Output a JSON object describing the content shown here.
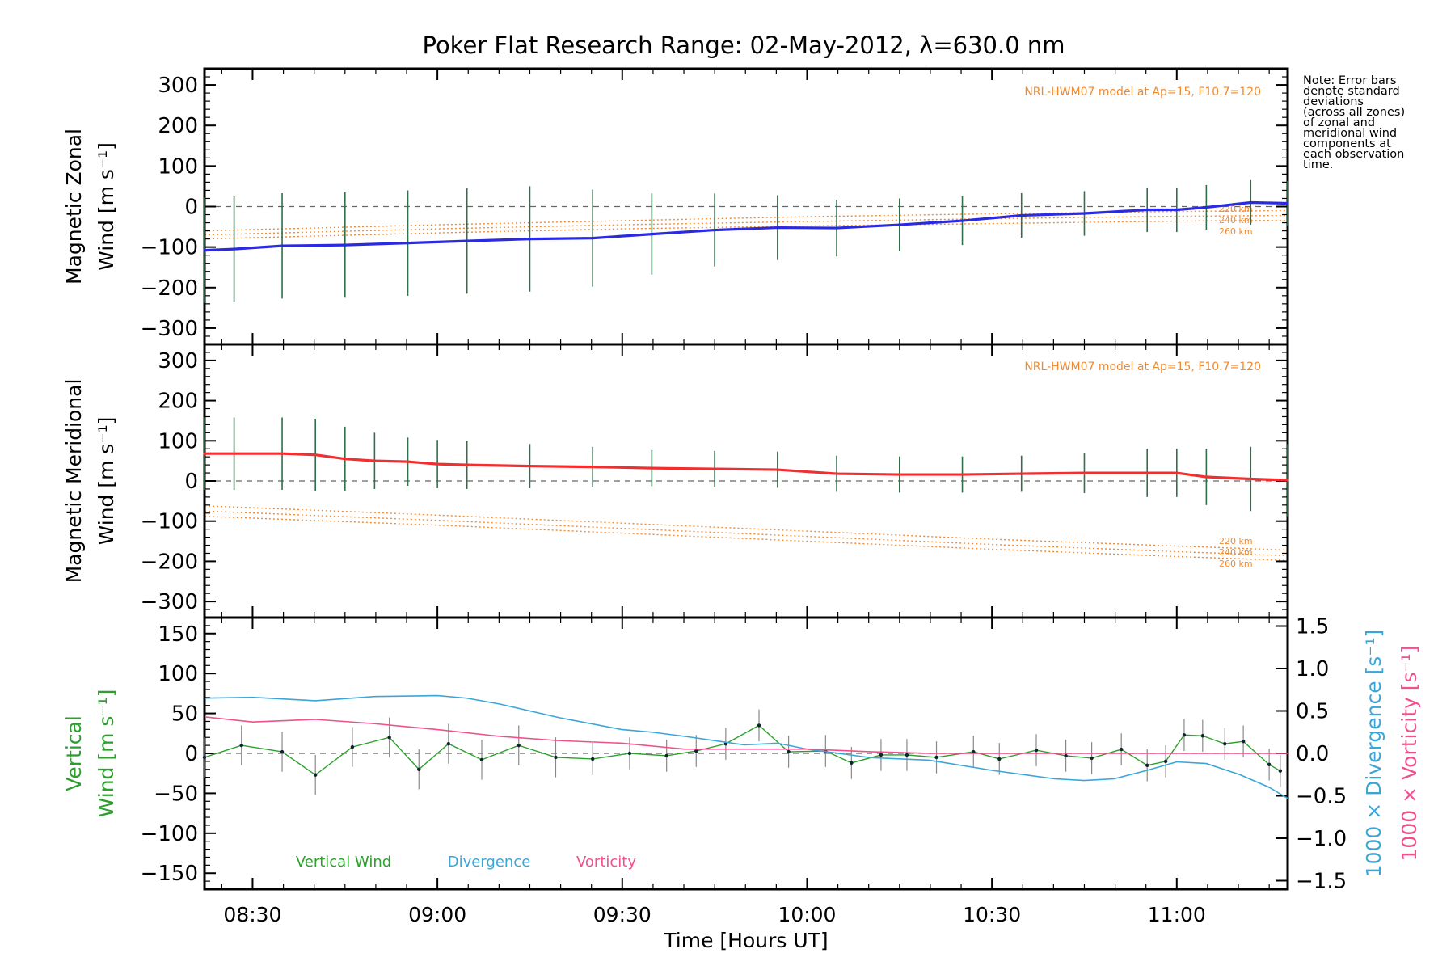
{
  "title": "Poker Flat Research Range: 02-May-2012, λ=630.0 nm",
  "note_lines": [
    "Note: Error bars",
    "denote standard",
    "deviations",
    "(across all zones)",
    "of zonal and",
    "meridional wind",
    "components at",
    "each observation",
    "time."
  ],
  "colors": {
    "zonal": "#2a2ae0",
    "meridional": "#f03030",
    "model": "#f08a30",
    "vertical": "#2ca02c",
    "divergence": "#3aa6d8",
    "vorticity": "#f0508c",
    "zone_markers": "#9aa0e8"
  },
  "chart_data": [
    {
      "type": "line",
      "name": "zonal-panel",
      "ylabel_lines": [
        "Magnetic Zonal",
        "Wind [m s⁻¹]"
      ],
      "xlim": [
        8.37,
        11.3
      ],
      "ylim": [
        -340,
        340
      ],
      "yticks": [
        -300,
        -200,
        -100,
        0,
        100,
        200,
        300
      ],
      "yticklabels": [
        "−300",
        "−200",
        "−100",
        "0",
        "100",
        "200",
        "300"
      ],
      "model_label": "NRL-HWM07 model at Ap=15, F10.7=120",
      "model_curves": [
        {
          "label": "220 km",
          "x": [
            8.37,
            9.0,
            9.5,
            10.0,
            10.5,
            11.0,
            11.3
          ],
          "y": [
            -60,
            -45,
            -35,
            -25,
            -18,
            -12,
            -10
          ]
        },
        {
          "label": "240 km",
          "x": [
            8.37,
            9.0,
            9.5,
            10.0,
            10.5,
            11.0,
            11.3
          ],
          "y": [
            -70,
            -55,
            -45,
            -37,
            -30,
            -24,
            -22
          ]
        },
        {
          "label": "260 km",
          "x": [
            8.37,
            9.0,
            9.5,
            10.0,
            10.5,
            11.0,
            11.3
          ],
          "y": [
            -80,
            -65,
            -55,
            -48,
            -42,
            -36,
            -34
          ]
        }
      ],
      "series": [
        {
          "name": "Magnetic Zonal Wind",
          "x": [
            8.37,
            8.45,
            8.58,
            8.75,
            8.92,
            9.08,
            9.25,
            9.42,
            9.58,
            9.75,
            9.92,
            10.08,
            10.25,
            10.42,
            10.58,
            10.75,
            10.92,
            11.0,
            11.08,
            11.2,
            11.3
          ],
          "y": [
            -108,
            -105,
            -97,
            -95,
            -90,
            -85,
            -80,
            -78,
            -68,
            -58,
            -52,
            -53,
            -45,
            -35,
            -22,
            -17,
            -8,
            -8,
            -2,
            10,
            8
          ],
          "err": [
            130,
            130,
            130,
            130,
            130,
            130,
            130,
            120,
            100,
            90,
            80,
            70,
            65,
            60,
            55,
            55,
            55,
            55,
            55,
            55,
            55
          ]
        }
      ]
    },
    {
      "type": "line",
      "name": "meridional-panel",
      "ylabel_lines": [
        "Magnetic Meridional",
        "Wind [m s⁻¹]"
      ],
      "xlim": [
        8.37,
        11.3
      ],
      "ylim": [
        -340,
        340
      ],
      "yticks": [
        -300,
        -200,
        -100,
        0,
        100,
        200,
        300
      ],
      "yticklabels": [
        "−300",
        "−200",
        "−100",
        "0",
        "100",
        "200",
        "300"
      ],
      "model_label": "NRL-HWM07 model at Ap=15, F10.7=120",
      "model_curves": [
        {
          "label": "220 km",
          "x": [
            8.37,
            9.0,
            9.5,
            10.0,
            10.5,
            11.0,
            11.3
          ],
          "y": [
            -62,
            -85,
            -105,
            -125,
            -145,
            -162,
            -172
          ]
        },
        {
          "label": "240 km",
          "x": [
            8.37,
            9.0,
            9.5,
            10.0,
            10.5,
            11.0,
            11.3
          ],
          "y": [
            -75,
            -98,
            -118,
            -138,
            -158,
            -176,
            -186
          ]
        },
        {
          "label": "260 km",
          "x": [
            8.37,
            9.0,
            9.5,
            10.0,
            10.5,
            11.0,
            11.3
          ],
          "y": [
            -88,
            -110,
            -130,
            -150,
            -170,
            -188,
            -198
          ]
        }
      ],
      "series": [
        {
          "name": "Magnetic Meridional Wind",
          "x": [
            8.37,
            8.45,
            8.58,
            8.67,
            8.75,
            8.83,
            8.92,
            9.0,
            9.08,
            9.25,
            9.42,
            9.58,
            9.75,
            9.92,
            10.08,
            10.25,
            10.42,
            10.58,
            10.75,
            10.92,
            11.0,
            11.08,
            11.2,
            11.3
          ],
          "y": [
            68,
            68,
            68,
            65,
            55,
            50,
            48,
            42,
            40,
            37,
            35,
            32,
            30,
            28,
            18,
            16,
            16,
            18,
            20,
            20,
            20,
            10,
            5,
            2
          ],
          "err": [
            90,
            90,
            90,
            90,
            80,
            70,
            60,
            60,
            60,
            55,
            50,
            45,
            45,
            45,
            45,
            45,
            45,
            45,
            50,
            60,
            60,
            70,
            80,
            90
          ]
        }
      ]
    },
    {
      "type": "line",
      "name": "vertical-panel",
      "ylabel_lines": [
        "Vertical",
        "Wind [m s⁻¹]"
      ],
      "xlabel": "Time [Hours UT]",
      "xlim": [
        8.37,
        11.3
      ],
      "xticks": [
        8.5,
        9.0,
        9.5,
        10.0,
        10.5,
        11.0
      ],
      "xticklabels": [
        "08:30",
        "09:00",
        "09:30",
        "10:00",
        "10:30",
        "11:00"
      ],
      "ylim": [
        -170,
        170
      ],
      "yticks": [
        -150,
        -100,
        -50,
        0,
        50,
        100,
        150
      ],
      "yticklabels": [
        "−150",
        "−100",
        "−50",
        "0",
        "50",
        "100",
        "150"
      ],
      "y2lim": [
        -1.6,
        1.6
      ],
      "y2ticks": [
        -1.5,
        -1.0,
        -0.5,
        0.0,
        0.5,
        1.0,
        1.5
      ],
      "y2ticklabels": [
        "−1.5",
        "−1.0",
        "−0.5",
        "0.0",
        "0.5",
        "1.0",
        "1.5"
      ],
      "y2label_div": "1000 × Divergence [s⁻¹]",
      "y2label_vor": "1000 × Vorticity [s⁻¹]",
      "legend": [
        "Vertical Wind",
        "Divergence",
        "Vorticity"
      ],
      "series": [
        {
          "name": "Vertical Wind",
          "x": [
            8.37,
            8.47,
            8.58,
            8.67,
            8.77,
            8.87,
            8.95,
            9.03,
            9.12,
            9.22,
            9.32,
            9.42,
            9.52,
            9.62,
            9.7,
            9.78,
            9.87,
            9.95,
            10.05,
            10.12,
            10.2,
            10.27,
            10.35,
            10.45,
            10.52,
            10.62,
            10.7,
            10.77,
            10.85,
            10.92,
            10.97,
            11.02,
            11.07,
            11.13,
            11.18,
            11.25,
            11.28
          ],
          "y": [
            -5,
            10,
            2,
            -27,
            8,
            20,
            -20,
            12,
            -8,
            10,
            -5,
            -7,
            0,
            -3,
            3,
            12,
            35,
            2,
            3,
            -12,
            -2,
            -2,
            -5,
            2,
            -7,
            4,
            -3,
            -6,
            5,
            -15,
            -10,
            23,
            22,
            12,
            15,
            -14,
            -22
          ],
          "err": [
            25,
            25,
            25,
            25,
            25,
            25,
            25,
            25,
            25,
            25,
            25,
            20,
            20,
            20,
            20,
            20,
            20,
            20,
            20,
            20,
            20,
            20,
            20,
            20,
            20,
            20,
            20,
            20,
            20,
            20,
            20,
            20,
            20,
            20,
            20,
            20,
            20
          ]
        },
        {
          "name": "Divergence",
          "axis": "y2",
          "x": [
            8.37,
            8.5,
            8.67,
            8.83,
            9.0,
            9.08,
            9.17,
            9.33,
            9.5,
            9.58,
            9.67,
            9.83,
            9.92,
            10.0,
            10.17,
            10.33,
            10.5,
            10.67,
            10.75,
            10.83,
            10.92,
            11.0,
            11.08,
            11.17,
            11.25,
            11.3
          ],
          "y": [
            0.65,
            0.66,
            0.62,
            0.67,
            0.68,
            0.65,
            0.58,
            0.42,
            0.28,
            0.25,
            0.2,
            0.1,
            0.12,
            0.05,
            -0.05,
            -0.08,
            -0.2,
            -0.3,
            -0.32,
            -0.3,
            -0.2,
            -0.1,
            -0.12,
            -0.25,
            -0.4,
            -0.53
          ]
        },
        {
          "name": "Vorticity",
          "axis": "y2",
          "x": [
            8.37,
            8.5,
            8.67,
            8.83,
            9.0,
            9.17,
            9.33,
            9.5,
            9.67,
            9.83,
            10.0,
            10.17,
            10.33,
            10.5,
            10.67,
            10.83,
            11.0,
            11.17,
            11.3
          ],
          "y": [
            0.43,
            0.37,
            0.4,
            0.35,
            0.28,
            0.2,
            0.15,
            0.12,
            0.05,
            0.05,
            0.05,
            0.02,
            0.0,
            0.0,
            0.0,
            0.0,
            0.0,
            0.0,
            0.0
          ]
        }
      ]
    }
  ]
}
